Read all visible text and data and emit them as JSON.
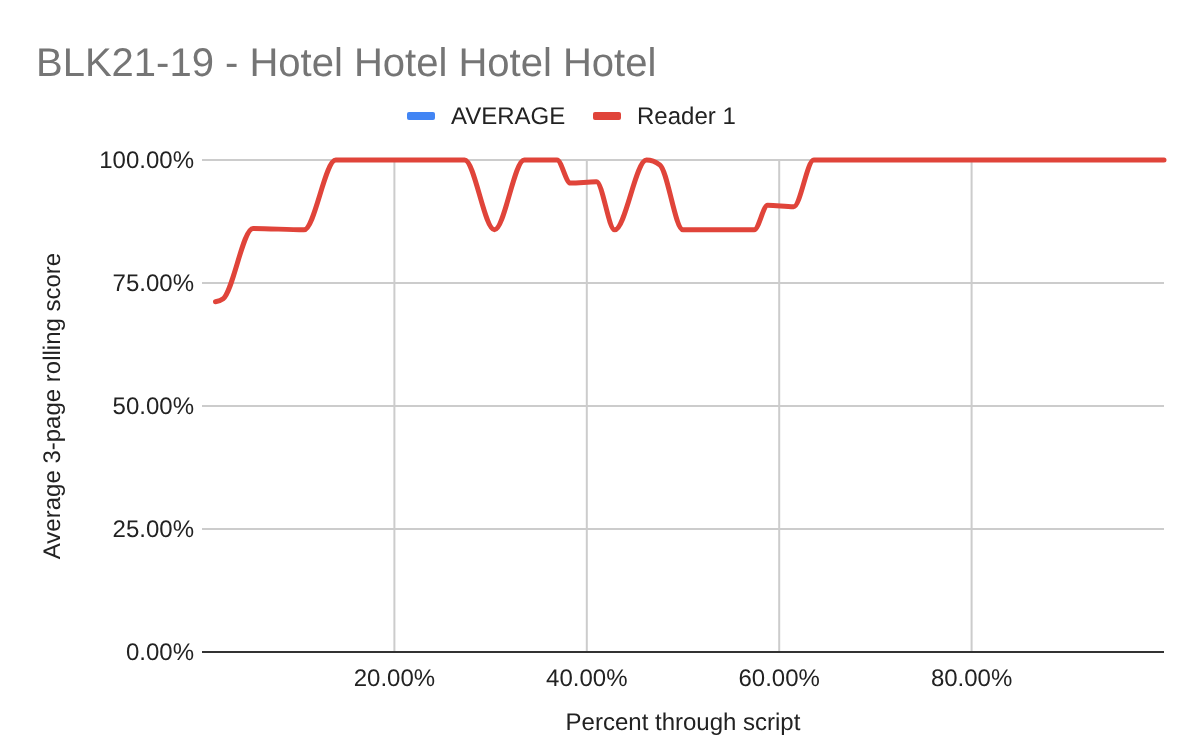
{
  "chart_data": {
    "type": "line",
    "title": "BLK21-19 - Hotel Hotel Hotel Hotel",
    "xlabel": "Percent through script",
    "ylabel": "Average 3-page rolling score",
    "xlim": [
      0,
      100
    ],
    "ylim": [
      0,
      100
    ],
    "xticks": [
      {
        "value": 20,
        "label": "20.00%"
      },
      {
        "value": 40,
        "label": "40.00%"
      },
      {
        "value": 60,
        "label": "60.00%"
      },
      {
        "value": 80,
        "label": "80.00%"
      }
    ],
    "yticks": [
      {
        "value": 0,
        "label": "0.00%"
      },
      {
        "value": 25,
        "label": "25.00%"
      },
      {
        "value": 50,
        "label": "50.00%"
      },
      {
        "value": 75,
        "label": "75.00%"
      },
      {
        "value": 100,
        "label": "100.00%"
      }
    ],
    "grid": true,
    "legend": "top",
    "marker": "none",
    "line_style": "solid",
    "x": [
      1.4,
      2.2,
      5.3,
      10.6,
      13.9,
      27.3,
      30.4,
      33.5,
      36.9,
      38.3,
      41.0,
      42.9,
      46.2,
      47.6,
      50.0,
      57.4,
      58.8,
      61.5,
      63.6,
      100
    ],
    "series": [
      {
        "name": "AVERAGE",
        "color": "#4285f4",
        "values": [
          null,
          null,
          null,
          null,
          null,
          null,
          null,
          null,
          null,
          null,
          null,
          null,
          null,
          null,
          null,
          null,
          null,
          null,
          null,
          null
        ]
      },
      {
        "name": "Reader 1",
        "color": "#e0443a",
        "values": [
          71.2,
          71.8,
          86.1,
          85.8,
          100,
          100,
          85.8,
          100,
          100,
          95.3,
          95.6,
          85.8,
          100,
          99,
          85.8,
          85.8,
          90.8,
          90.5,
          100,
          100
        ]
      }
    ]
  }
}
